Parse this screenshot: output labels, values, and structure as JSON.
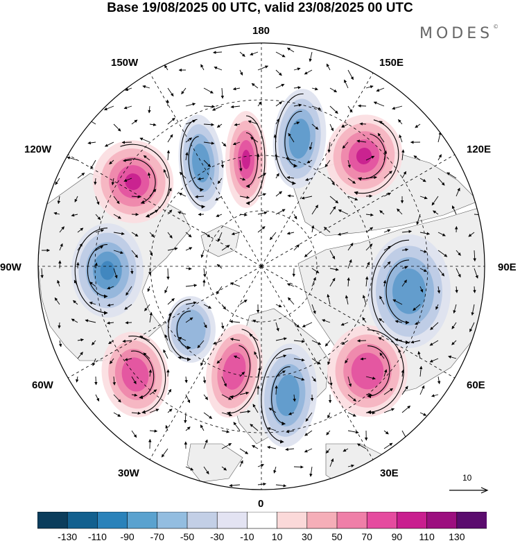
{
  "title": "Base 19/08/2025 00 UTC, valid 23/08/2025 00 UTC",
  "logo": "MODES",
  "logo_mark": "©",
  "longitude_labels": [
    {
      "id": "180",
      "text": "180"
    },
    {
      "id": "150e",
      "text": "150E"
    },
    {
      "id": "120e",
      "text": "120E"
    },
    {
      "id": "90e",
      "text": "90E"
    },
    {
      "id": "60e",
      "text": "60E"
    },
    {
      "id": "30e",
      "text": "30E"
    },
    {
      "id": "0",
      "text": "0"
    },
    {
      "id": "30w",
      "text": "30W"
    },
    {
      "id": "60w",
      "text": "60W"
    },
    {
      "id": "90w",
      "text": "90W"
    },
    {
      "id": "120w",
      "text": "120W"
    },
    {
      "id": "150w",
      "text": "150W"
    }
  ],
  "reference_vector": {
    "label": "10"
  },
  "colorbar": {
    "colors": [
      "#0b3d5c",
      "#12608f",
      "#2a82ba",
      "#5aa2cf",
      "#93bde0",
      "#c3cfe6",
      "#e3e3f2",
      "#ffffff",
      "#fbd9d9",
      "#f5aeb8",
      "#ef7fa8",
      "#e54b9f",
      "#c91e8f",
      "#9c0f7f",
      "#5b0c6e"
    ],
    "ticks": [
      "-130",
      "-110",
      "-90",
      "-70",
      "-50",
      "-30",
      "-10",
      "10",
      "30",
      "50",
      "70",
      "90",
      "110",
      "130"
    ]
  },
  "anomaly_centers": [
    {
      "sign": "positive",
      "strength": "strong"
    },
    {
      "sign": "positive",
      "strength": "strong"
    },
    {
      "sign": "positive",
      "strength": "strong"
    },
    {
      "sign": "positive",
      "strength": "moderate"
    },
    {
      "sign": "positive",
      "strength": "moderate"
    },
    {
      "sign": "positive",
      "strength": "moderate"
    },
    {
      "sign": "negative",
      "strength": "moderate"
    },
    {
      "sign": "negative",
      "strength": "moderate"
    },
    {
      "sign": "negative",
      "strength": "strong"
    },
    {
      "sign": "negative",
      "strength": "moderate"
    },
    {
      "sign": "negative",
      "strength": "weak"
    },
    {
      "sign": "negative",
      "strength": "moderate"
    }
  ]
}
